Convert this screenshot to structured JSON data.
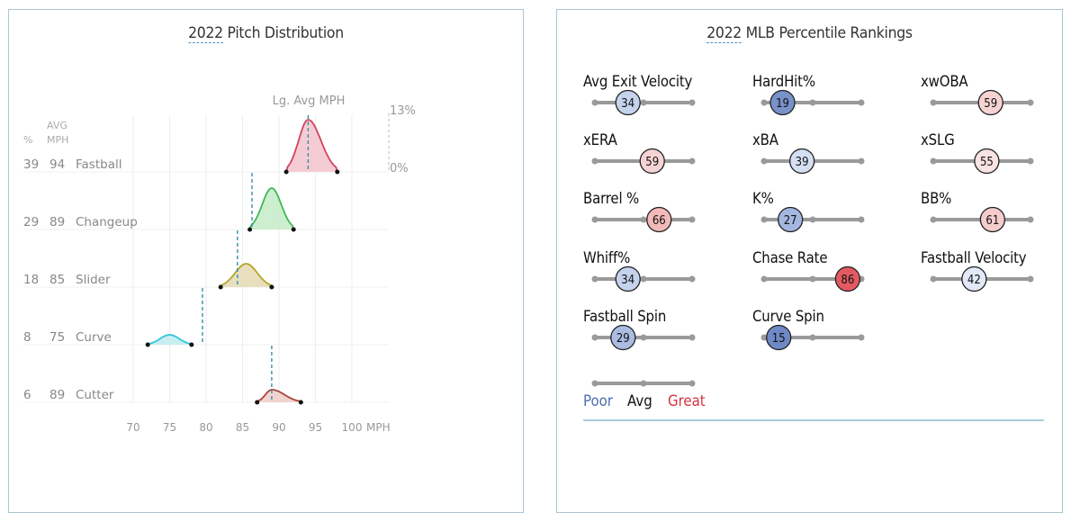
{
  "pitch_distribution": {
    "title_year": "2022",
    "title_rest": " Pitch Distribution",
    "header_pct": "%",
    "header_avg_line1": "AVG",
    "header_avg_line2": "MPH",
    "lg_avg_label": "Lg. Avg MPH",
    "y_top_label": "13%",
    "y_bottom_label": "0%",
    "x_axis_unit": "MPH",
    "pitches": [
      {
        "pct": "39",
        "mph": "94",
        "name": "Fastball",
        "color": "#d0455f",
        "fill": "#f4c6ce",
        "lg_avg": 94
      },
      {
        "pct": "29",
        "mph": "89",
        "name": "Changeup",
        "color": "#3cba54",
        "fill": "#c8ecca",
        "lg_avg": 86.3
      },
      {
        "pct": "18",
        "mph": "85",
        "name": "Slider",
        "color": "#b5a52a",
        "fill": "#e4dcb7",
        "lg_avg": 84.3
      },
      {
        "pct": "8",
        "mph": "75",
        "name": "Curve",
        "color": "#35c6d8",
        "fill": "#c3edf2",
        "lg_avg": 79.5
      },
      {
        "pct": "6",
        "mph": "89",
        "name": "Cutter",
        "color": "#a8453a",
        "fill": "#efcfcb",
        "lg_avg": 89
      }
    ],
    "x_ticks": [
      "70",
      "75",
      "80",
      "85",
      "90",
      "95",
      "100"
    ]
  },
  "percentile_rankings": {
    "title_year": "2022",
    "title_rest": " MLB Percentile Rankings",
    "metrics": [
      {
        "label": "Avg Exit Velocity",
        "value": "34",
        "fill": "#c6d3ec"
      },
      {
        "label": "HardHit%",
        "value": "19",
        "fill": "#7891c9"
      },
      {
        "label": "xwOBA",
        "value": "59",
        "fill": "#f6d3d3"
      },
      {
        "label": "xERA",
        "value": "59",
        "fill": "#f6d3d3"
      },
      {
        "label": "xBA",
        "value": "39",
        "fill": "#d5dff2"
      },
      {
        "label": "xSLG",
        "value": "55",
        "fill": "#f9e3e3"
      },
      {
        "label": "Barrel %",
        "value": "66",
        "fill": "#f3b9b9"
      },
      {
        "label": "K%",
        "value": "27",
        "fill": "#a4b7e0"
      },
      {
        "label": "BB%",
        "value": "61",
        "fill": "#f5cccc"
      },
      {
        "label": "Whiff%",
        "value": "34",
        "fill": "#c6d3ec"
      },
      {
        "label": "Chase Rate",
        "value": "86",
        "fill": "#e35a62"
      },
      {
        "label": "Fastball Velocity",
        "value": "42",
        "fill": "#e1e8f6"
      },
      {
        "label": "Fastball Spin",
        "value": "29",
        "fill": "#aabce2"
      },
      {
        "label": "Curve Spin",
        "value": "15",
        "fill": "#6f89c6"
      }
    ],
    "legend": {
      "poor": "Poor",
      "avg": "Avg",
      "great": "Great",
      "poor_color": "#4a6fb0",
      "avg_color": "#111111",
      "great_color": "#d6333f"
    }
  },
  "chart_data": [
    {
      "type": "area",
      "title": "2022 Pitch Distribution",
      "xlabel": "MPH",
      "ylabel": "% of pitches (0%–13%)",
      "x_ticks": [
        70,
        75,
        80,
        85,
        90,
        95,
        100
      ],
      "xlim": [
        70,
        100
      ],
      "ylim": [
        0,
        13
      ],
      "grid": true,
      "annotations": [
        "Lg. Avg MPH"
      ],
      "series": [
        {
          "name": "Fastball",
          "usage_pct": 39,
          "avg_mph": 94,
          "range": [
            91,
            98
          ],
          "peak_mph": 94,
          "lg_avg_mph": 94
        },
        {
          "name": "Changeup",
          "usage_pct": 29,
          "avg_mph": 89,
          "range": [
            86,
            92
          ],
          "peak_mph": 89,
          "lg_avg_mph": 86.3
        },
        {
          "name": "Slider",
          "usage_pct": 18,
          "avg_mph": 85,
          "range": [
            82,
            89
          ],
          "peak_mph": 85.5,
          "lg_avg_mph": 84.3
        },
        {
          "name": "Curve",
          "usage_pct": 8,
          "avg_mph": 75,
          "range": [
            72,
            78
          ],
          "peak_mph": 75,
          "lg_avg_mph": 79.5
        },
        {
          "name": "Cutter",
          "usage_pct": 6,
          "avg_mph": 89,
          "range": [
            87,
            93
          ],
          "peak_mph": 89,
          "lg_avg_mph": 89
        }
      ]
    },
    {
      "type": "table",
      "title": "2022 MLB Percentile Rankings",
      "categories": [
        "Avg Exit Velocity",
        "HardHit%",
        "xwOBA",
        "xERA",
        "xBA",
        "xSLG",
        "Barrel %",
        "K%",
        "BB%",
        "Whiff%",
        "Chase Rate",
        "Fastball Velocity",
        "Fastball Spin",
        "Curve Spin"
      ],
      "values": [
        34,
        19,
        59,
        59,
        39,
        55,
        66,
        27,
        61,
        34,
        86,
        42,
        29,
        15
      ],
      "ylim": [
        0,
        100
      ],
      "legend": [
        "Poor",
        "Avg",
        "Great"
      ]
    }
  ]
}
